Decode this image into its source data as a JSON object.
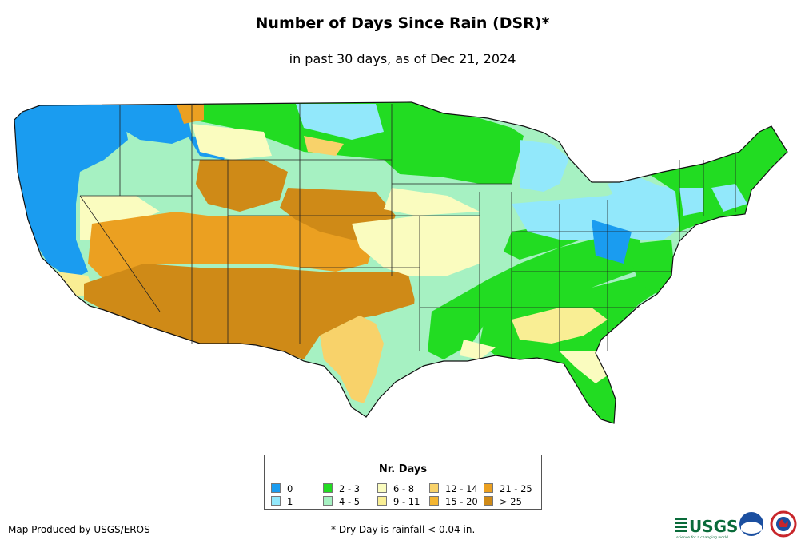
{
  "title": "Number of Days Since Rain (DSR)*",
  "subtitle": "in past 30 days, as of Dec 21, 2024",
  "legend": {
    "title": "Nr. Days",
    "items": [
      {
        "label": "0",
        "color": "#1a9cf0"
      },
      {
        "label": "1",
        "color": "#92e8fb"
      },
      {
        "label": "2 - 3",
        "color": "#22dc22"
      },
      {
        "label": "4 - 5",
        "color": "#a6f1c2"
      },
      {
        "label": "6 - 8",
        "color": "#fafcbf"
      },
      {
        "label": "9 - 11",
        "color": "#f9ee94"
      },
      {
        "label": "12 - 14",
        "color": "#f8d26a"
      },
      {
        "label": "15 - 20",
        "color": "#f3b531"
      },
      {
        "label": "21 - 25",
        "color": "#eba021"
      },
      {
        "label": "> 25",
        "color": "#cf8a17"
      }
    ]
  },
  "footer": {
    "producer": "Map Produced by USGS/EROS",
    "note": "* Dry Day is rainfall < 0.04 in."
  },
  "logos": {
    "usgs": "USGS",
    "usgs_tagline": "science for a changing world",
    "noaa": "noaa"
  }
}
